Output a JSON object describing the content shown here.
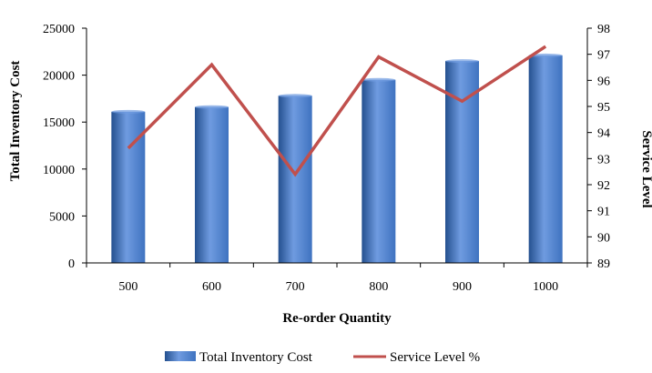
{
  "chart_data": {
    "type": "bar",
    "categories": [
      "500",
      "600",
      "700",
      "800",
      "900",
      "1000"
    ],
    "series": [
      {
        "name": "Total Inventory Cost",
        "type": "bar",
        "axis": "left",
        "values": [
          16100,
          16600,
          17800,
          19500,
          21500,
          22100
        ]
      },
      {
        "name": "Service Level %",
        "type": "line",
        "axis": "right",
        "values": [
          93.4,
          96.6,
          92.4,
          96.9,
          95.2,
          97.3
        ]
      }
    ],
    "xlabel": "Re-order Quantity",
    "ylabel": "Total Inventory Cost",
    "y2label": "Service Level",
    "ylim": [
      0,
      25000
    ],
    "y2lim": [
      89,
      98
    ],
    "yticks": [
      0,
      5000,
      10000,
      15000,
      20000,
      25000
    ],
    "y2ticks": [
      89,
      90,
      91,
      92,
      93,
      94,
      95,
      96,
      97,
      98
    ],
    "grid": false,
    "legend": "bottom",
    "colors": {
      "bar": "#3F73C0",
      "bar_dark": "#24508F",
      "bar_light": "#6F9BE0",
      "line": "#C0504D"
    }
  }
}
